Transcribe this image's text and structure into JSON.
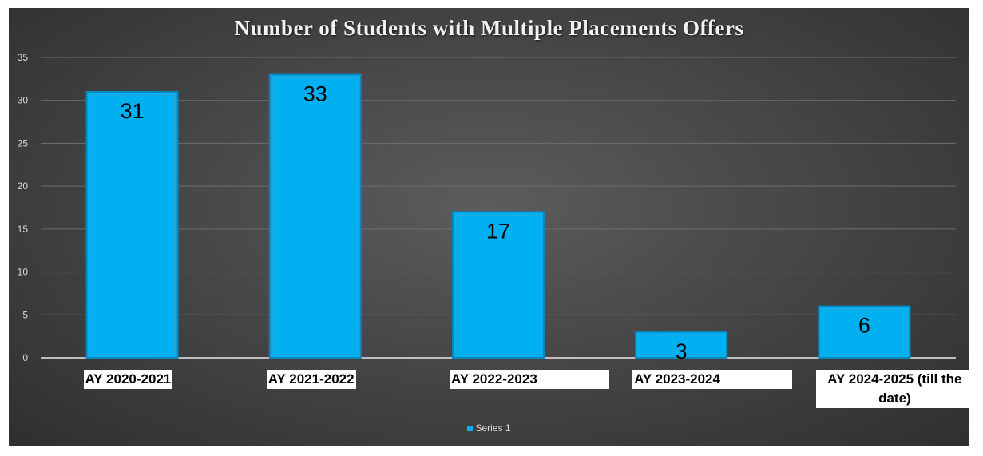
{
  "chart_data": {
    "type": "bar",
    "title": "Number of Students with Multiple Placements Offers",
    "categories": [
      "AY 2020-2021",
      "AY 2021-2022",
      "AY 2022-2023",
      "AY 2023-2024",
      "AY 2024-2025  (till the date)"
    ],
    "series": [
      {
        "name": "Series 1",
        "values": [
          31,
          33,
          17,
          3,
          6
        ]
      }
    ],
    "ylim": [
      0,
      35
    ],
    "yticks": [
      0,
      5,
      10,
      15,
      20,
      25,
      30,
      35
    ],
    "grid": true,
    "legend_position": "bottom",
    "bar_color": "#00b0f0"
  }
}
